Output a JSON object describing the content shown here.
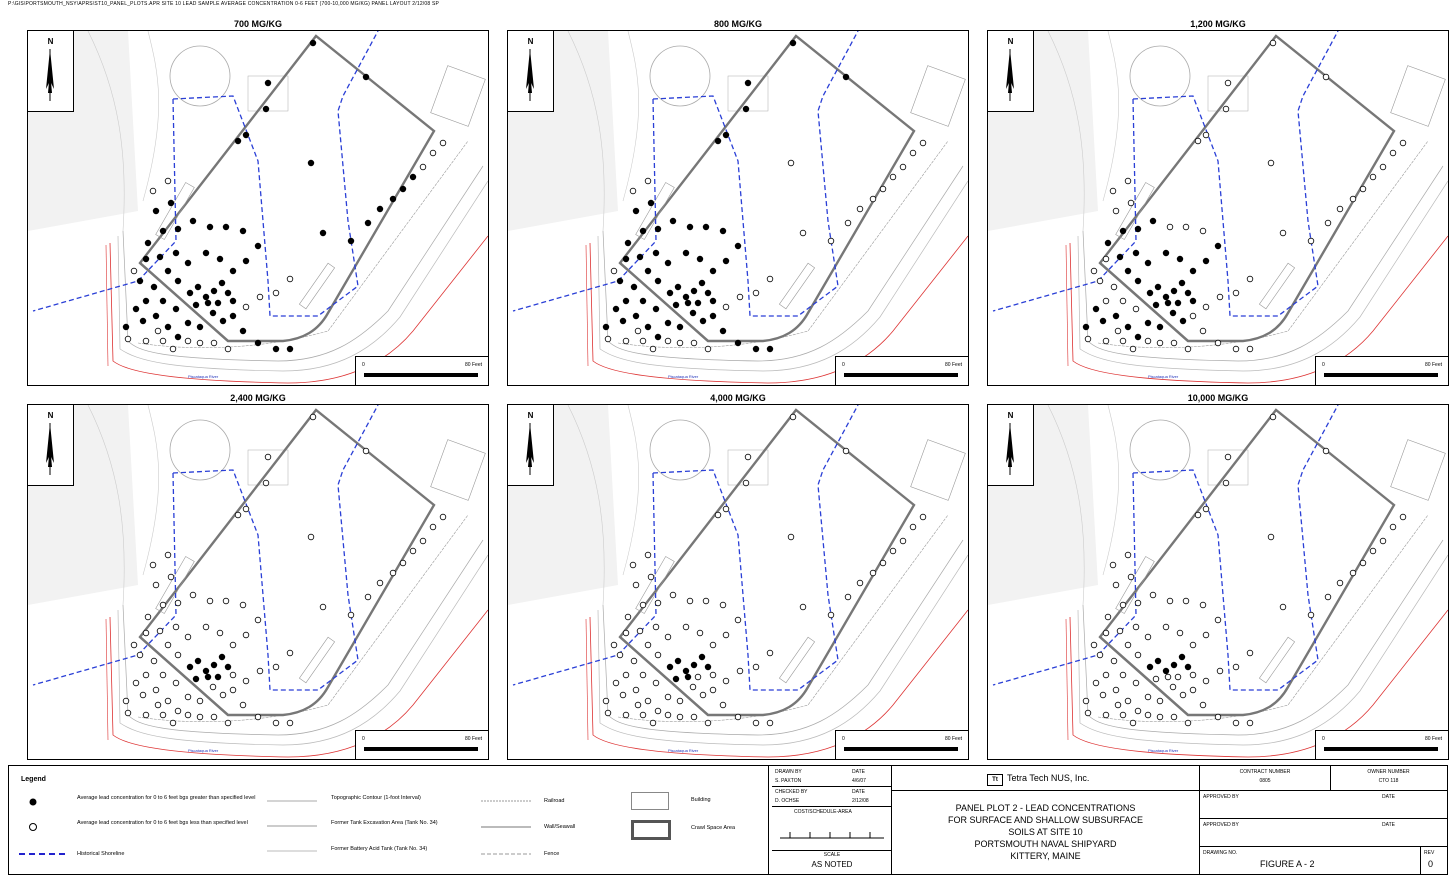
{
  "header": {
    "path": "P:\\GIS\\PORTSMOUTH_NSY\\APRS\\ST10_PANEL_PLOTS.APR SITE 10 LEAD SAMPLE AVERAGE CONCENTRATION 0-6 FEET (700-10,000 MG/KG) PANEL LAYOUT 2/12/08 SP"
  },
  "panels": [
    {
      "title": "700 MG/KG"
    },
    {
      "title": "800 MG/KG"
    },
    {
      "title": "1,200 MG/KG"
    },
    {
      "title": "2,400 MG/KG"
    },
    {
      "title": "4,000 MG/KG"
    },
    {
      "title": "10,000 MG/KG"
    }
  ],
  "map_labels": {
    "north": "N",
    "scale_zero": "0",
    "scale_end": "80 Feet",
    "river": "Piscataqua River"
  },
  "legend": {
    "title": "Legend",
    "items": [
      {
        "label": "Average lead concentration for 0 to 6 feet bgs greater than specified level",
        "symbol": "filled-circle"
      },
      {
        "label": "Average lead concentration for 0 to 6 feet bgs less than specified level",
        "symbol": "open-circle"
      },
      {
        "label": "Historical Shoreline",
        "symbol": "blue-dashed-line"
      },
      {
        "label": "Topographic Contour (1-foot Interval)",
        "symbol": "gray-line"
      },
      {
        "label": "Former Tank Excavation Area (Tank No. 34)",
        "symbol": "gray-line"
      },
      {
        "label": "Former Battery Acid Tank (Tank No. 34)",
        "symbol": "gray-line"
      },
      {
        "label": "Railroad",
        "symbol": "gray-line"
      },
      {
        "label": "Wall/Seawall",
        "symbol": "gray-line"
      },
      {
        "label": "Fence",
        "symbol": "gray-line"
      },
      {
        "label": "Building",
        "symbol": "thin-box"
      },
      {
        "label": "Crawl Space Area",
        "symbol": "thick-box"
      }
    ]
  },
  "title_block": {
    "drawn_by_label": "DRAWN BY",
    "drawn_by": "S. PAXTON",
    "drawn_date_label": "DATE",
    "drawn_date": "4/6/07",
    "checked_by_label": "CHECKED BY",
    "checked_by": "D. OCHSE",
    "checked_date_label": "DATE",
    "checked_date": "2/12/08",
    "cost_area_label": "COST/SCHEDULE-AREA",
    "scale_label": "SCALE",
    "scale": "AS NOTED",
    "company": "Tetra Tech NUS, Inc.",
    "title_lines": [
      "PANEL PLOT 2 - LEAD CONCENTRATIONS",
      "FOR SURFACE AND SHALLOW SUBSURFACE",
      "SOILS AT SITE 10",
      "PORTSMOUTH NAVAL SHIPYARD",
      "KITTERY, MAINE"
    ],
    "contract_label": "CONTRACT NUMBER",
    "contract": "0805",
    "owner_label": "OWNER NUMBER",
    "owner": "CTO 118",
    "approved1_label": "APPROVED BY",
    "approved1_date_label": "DATE",
    "approved2_label": "APPROVED BY",
    "approved2_date_label": "DATE",
    "drawing_label": "DRAWING NO.",
    "drawing": "FIGURE A - 2",
    "rev_label": "REV",
    "rev": "0"
  }
}
